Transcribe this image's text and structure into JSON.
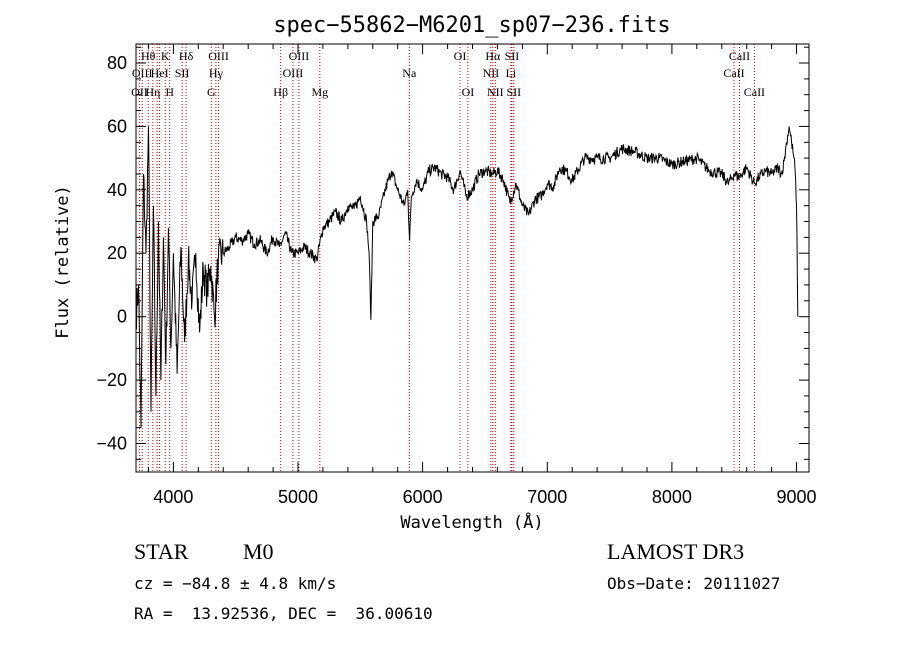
{
  "chart_data": {
    "type": "line",
    "title": "spec−55862−M6201_sp07−236.fits",
    "xlabel": "Wavelength (Å)",
    "ylabel": "Flux (relative)",
    "xlim": [
      3700,
      9100
    ],
    "ylim": [
      -49,
      86
    ],
    "xticks": [
      4000,
      5000,
      6000,
      7000,
      8000,
      9000
    ],
    "xtick_labels": [
      "4000",
      "5000",
      "6000",
      "7000",
      "8000",
      "9000"
    ],
    "yticks": [
      -40,
      -20,
      0,
      20,
      40,
      60,
      80
    ],
    "ytick_labels": [
      "−40",
      "−20",
      "0",
      "20",
      "40",
      "60",
      "80"
    ],
    "line_color": "#000000",
    "marker_color": "#c00000",
    "series": [
      {
        "name": "flux",
        "x": [
          3700,
          3720,
          3740,
          3760,
          3780,
          3800,
          3820,
          3840,
          3860,
          3880,
          3900,
          3920,
          3940,
          3960,
          3980,
          4000,
          4030,
          4060,
          4090,
          4120,
          4150,
          4180,
          4210,
          4240,
          4270,
          4300,
          4330,
          4360,
          4400,
          4450,
          4500,
          4550,
          4600,
          4650,
          4700,
          4750,
          4800,
          4850,
          4900,
          4950,
          5000,
          5050,
          5100,
          5150,
          5200,
          5250,
          5300,
          5350,
          5400,
          5450,
          5500,
          5550,
          5570,
          5585,
          5600,
          5650,
          5700,
          5750,
          5800,
          5850,
          5880,
          5895,
          5910,
          5950,
          6000,
          6050,
          6100,
          6150,
          6200,
          6250,
          6300,
          6350,
          6400,
          6450,
          6500,
          6560,
          6600,
          6650,
          6700,
          6750,
          6800,
          6850,
          6900,
          6950,
          7000,
          7050,
          7100,
          7150,
          7200,
          7300,
          7400,
          7500,
          7600,
          7700,
          7800,
          7900,
          8000,
          8100,
          8200,
          8300,
          8400,
          8450,
          8500,
          8540,
          8600,
          8660,
          8700,
          8750,
          8800,
          8850,
          8880,
          8900,
          8920,
          8940,
          8960,
          8980,
          8990,
          9000,
          9010
        ],
        "y": [
          0,
          10,
          -35,
          45,
          20,
          60,
          -30,
          35,
          -25,
          30,
          -20,
          25,
          -15,
          28,
          -10,
          20,
          -18,
          22,
          -8,
          18,
          5,
          20,
          -5,
          15,
          8,
          16,
          0,
          18,
          20,
          22,
          25,
          24,
          26,
          23,
          24,
          20,
          25,
          22,
          26,
          20,
          20,
          22,
          20,
          18,
          28,
          30,
          33,
          30,
          35,
          34,
          38,
          30,
          20,
          -1,
          30,
          32,
          40,
          46,
          40,
          35,
          40,
          24,
          38,
          43,
          40,
          46,
          47,
          45,
          44,
          40,
          46,
          38,
          40,
          45,
          46,
          45,
          46,
          43,
          36,
          42,
          35,
          32,
          37,
          38,
          42,
          41,
          47,
          46,
          43,
          50,
          50,
          50,
          53,
          52,
          50,
          50,
          48,
          49,
          50,
          46,
          45,
          42,
          45,
          44,
          47,
          42,
          44,
          46,
          45,
          47,
          45,
          49,
          55,
          60,
          55,
          50,
          45,
          35,
          0
        ]
      }
    ],
    "line_markers": [
      {
        "wl": 3727,
        "labels": [
          "OII"
        ]
      },
      {
        "wl": 3750,
        "labels": [
          "OIII"
        ]
      },
      {
        "wl": 3798,
        "labels": [
          "Hθ"
        ]
      },
      {
        "wl": 3835,
        "labels": [
          "Hη"
        ]
      },
      {
        "wl": 3869,
        "labels": [
          "H"
        ]
      },
      {
        "wl": 3889,
        "labels": [
          "HeI"
        ]
      },
      {
        "wl": 3934,
        "labels": [
          "K"
        ]
      },
      {
        "wl": 3970,
        "labels": [
          "H"
        ]
      },
      {
        "wl": 4070,
        "labels": [
          "SII"
        ]
      },
      {
        "wl": 4102,
        "labels": [
          "Hδ"
        ]
      },
      {
        "wl": 4304,
        "labels": [
          "G"
        ]
      },
      {
        "wl": 4341,
        "labels": [
          "Hγ"
        ]
      },
      {
        "wl": 4363,
        "labels": [
          "OIII"
        ]
      },
      {
        "wl": 4861,
        "labels": [
          "Hβ"
        ]
      },
      {
        "wl": 4959,
        "labels": [
          "OIII"
        ]
      },
      {
        "wl": 5007,
        "labels": [
          "OIII"
        ]
      },
      {
        "wl": 5175,
        "labels": [
          "Mg"
        ]
      },
      {
        "wl": 5893,
        "labels": [
          "Na"
        ]
      },
      {
        "wl": 6300,
        "labels": [
          "OI"
        ]
      },
      {
        "wl": 6363,
        "labels": [
          "OI"
        ]
      },
      {
        "wl": 6548,
        "labels": [
          "NII"
        ]
      },
      {
        "wl": 6563,
        "labels": [
          "Hα"
        ]
      },
      {
        "wl": 6583,
        "labels": [
          "NII"
        ]
      },
      {
        "wl": 6708,
        "labels": [
          "Li"
        ]
      },
      {
        "wl": 6716,
        "labels": [
          "SII"
        ]
      },
      {
        "wl": 6731,
        "labels": [
          "SII"
        ]
      },
      {
        "wl": 8498,
        "labels": [
          "CaII"
        ]
      },
      {
        "wl": 8542,
        "labels": [
          "CaII"
        ]
      },
      {
        "wl": 8662,
        "labels": [
          "CaII"
        ]
      }
    ],
    "annotation_labels": [
      {
        "text": "Hθ",
        "wl": 3798,
        "row": 0
      },
      {
        "text": "K",
        "wl": 3934,
        "row": 0
      },
      {
        "text": "Hδ",
        "wl": 4102,
        "row": 0
      },
      {
        "text": "OIII",
        "wl": 4363,
        "row": 0
      },
      {
        "text": "OIII",
        "wl": 5007,
        "row": 0
      },
      {
        "text": "OI",
        "wl": 6300,
        "row": 0
      },
      {
        "text": "Hα",
        "wl": 6563,
        "row": 0
      },
      {
        "text": "SII",
        "wl": 6716,
        "row": 0
      },
      {
        "text": "CaII",
        "wl": 8542,
        "row": 0
      },
      {
        "text": "OIII",
        "wl": 3750,
        "row": 1
      },
      {
        "text": "HeI",
        "wl": 3889,
        "row": 1
      },
      {
        "text": "SII",
        "wl": 4070,
        "row": 1
      },
      {
        "text": "Hγ",
        "wl": 4341,
        "row": 1
      },
      {
        "text": "OIII",
        "wl": 4959,
        "row": 1
      },
      {
        "text": "Na",
        "wl": 5893,
        "row": 1
      },
      {
        "text": "NII",
        "wl": 6548,
        "row": 1
      },
      {
        "text": "Li",
        "wl": 6708,
        "row": 1
      },
      {
        "text": "CaII",
        "wl": 8498,
        "row": 1
      },
      {
        "text": "OII",
        "wl": 3727,
        "row": 2
      },
      {
        "text": "Hη",
        "wl": 3835,
        "row": 2
      },
      {
        "text": "H",
        "wl": 3970,
        "row": 2
      },
      {
        "text": "G",
        "wl": 4304,
        "row": 2
      },
      {
        "text": "Hβ",
        "wl": 4861,
        "row": 2
      },
      {
        "text": "Mg",
        "wl": 5175,
        "row": 2
      },
      {
        "text": "OI",
        "wl": 6363,
        "row": 2
      },
      {
        "text": "NII",
        "wl": 6583,
        "row": 2
      },
      {
        "text": "SII",
        "wl": 6731,
        "row": 2
      },
      {
        "text": "CaII",
        "wl": 8662,
        "row": 2
      }
    ]
  },
  "info": {
    "class": "STAR",
    "subclass": "M0",
    "survey": "LAMOST DR3",
    "cz": "cz = −84.8 ± 4.8 km/s",
    "obs_date": "Obs−Date: 20111027",
    "radec": "RA =  13.92536, DEC =  36.00610"
  }
}
